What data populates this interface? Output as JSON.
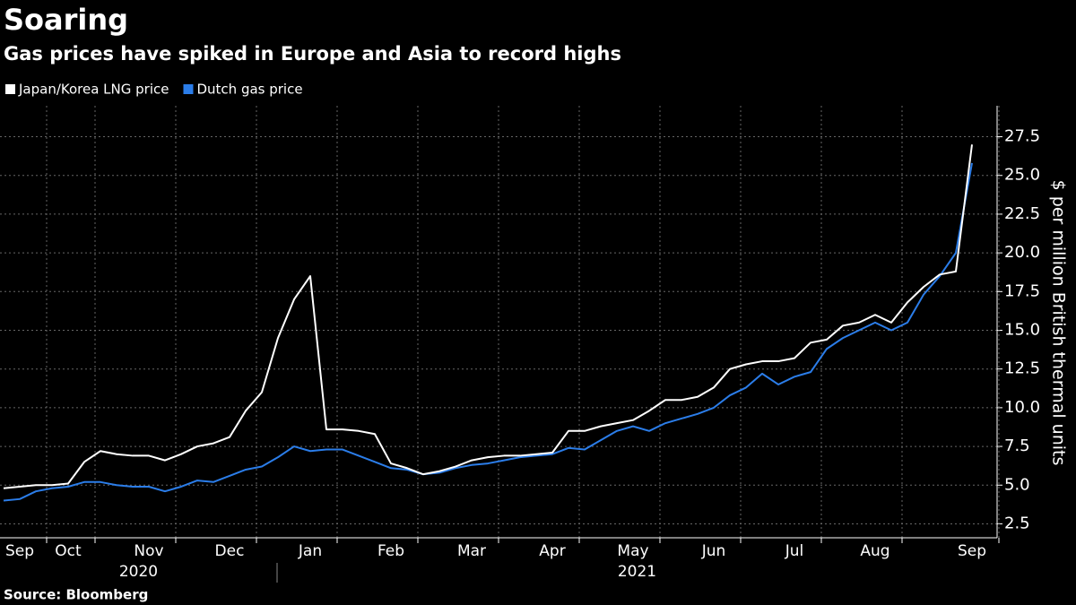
{
  "chart_data": {
    "type": "line",
    "title": "Soaring",
    "subtitle": "Gas prices have spiked in Europe and Asia to record highs",
    "y_axis_label": "$ per million British thermal units",
    "source": "Source: Bloomberg",
    "year_labels": [
      "2020",
      "2021"
    ],
    "categories": [
      null,
      "Sep",
      null,
      null,
      "Oct",
      null,
      null,
      null,
      null,
      "Nov",
      null,
      null,
      null,
      null,
      "Dec",
      null,
      null,
      null,
      null,
      "Jan",
      null,
      null,
      null,
      null,
      "Feb",
      null,
      null,
      null,
      null,
      "Mar",
      null,
      null,
      null,
      null,
      "Apr",
      null,
      null,
      null,
      null,
      "May",
      null,
      null,
      null,
      null,
      "Jun",
      null,
      null,
      null,
      null,
      "Jul",
      null,
      null,
      null,
      null,
      "Aug",
      null,
      null,
      null,
      null,
      null,
      "Sep"
    ],
    "series": [
      {
        "name": "Japan/Korea LNG price",
        "color": "#ffffff",
        "values": [
          4.8,
          4.9,
          5.0,
          5.0,
          5.1,
          6.5,
          7.2,
          7.0,
          6.9,
          6.9,
          6.6,
          7.0,
          7.5,
          7.7,
          8.1,
          9.8,
          11.0,
          14.5,
          17.0,
          18.5,
          8.6,
          8.6,
          8.5,
          8.3,
          6.4,
          6.1,
          5.7,
          5.9,
          6.2,
          6.6,
          6.8,
          6.9,
          6.9,
          7.0,
          7.1,
          8.5,
          8.5,
          8.8,
          9.0,
          9.2,
          9.8,
          10.5,
          10.5,
          10.7,
          11.3,
          12.5,
          12.8,
          13.0,
          13.0,
          13.2,
          14.2,
          14.4,
          15.3,
          15.5,
          16.0,
          15.5,
          16.8,
          17.8,
          18.6,
          18.8,
          27.0
        ]
      },
      {
        "name": "Dutch gas price",
        "color": "#2b7de9",
        "values": [
          4.0,
          4.1,
          4.6,
          4.8,
          4.9,
          5.2,
          5.2,
          5.0,
          4.9,
          4.9,
          4.6,
          4.9,
          5.3,
          5.2,
          5.6,
          6.0,
          6.2,
          6.8,
          7.5,
          7.2,
          7.3,
          7.3,
          6.9,
          6.5,
          6.1,
          6.0,
          5.7,
          5.8,
          6.1,
          6.3,
          6.4,
          6.6,
          6.8,
          6.9,
          7.0,
          7.4,
          7.3,
          7.9,
          8.5,
          8.8,
          8.5,
          9.0,
          9.3,
          9.6,
          10.0,
          10.8,
          11.3,
          12.2,
          11.5,
          12.0,
          12.3,
          13.8,
          14.5,
          15.0,
          15.5,
          15.0,
          15.5,
          17.3,
          18.5,
          20.0,
          25.8
        ]
      }
    ],
    "ylim": [
      1.6,
      29.5
    ],
    "yticks": [
      2.5,
      {
        "value": 5,
        "label": "5.0"
      },
      7.5,
      {
        "value": 10,
        "label": "10.0"
      },
      12.5,
      {
        "value": 15,
        "label": "15.0"
      },
      17.5,
      {
        "value": 20,
        "label": "20.0"
      },
      22.5,
      {
        "value": 25,
        "label": "25.0"
      },
      27.5
    ],
    "grid": true,
    "legend": "top-left"
  }
}
